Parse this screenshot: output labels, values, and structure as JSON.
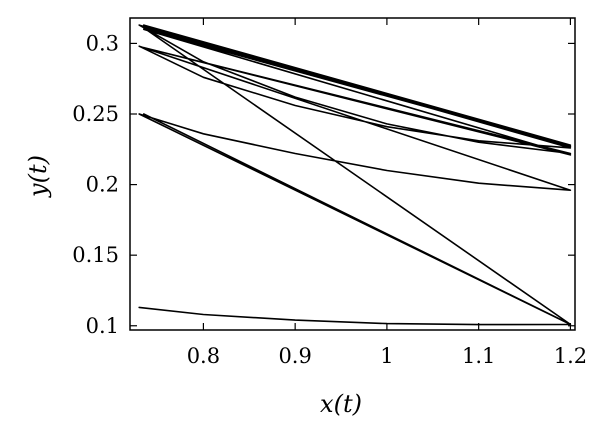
{
  "chart_data": {
    "type": "line",
    "title": "",
    "xlabel": "x(t)",
    "ylabel": "y(t)",
    "xlim": [
      0.72,
      1.205
    ],
    "ylim": [
      0.097,
      0.318
    ],
    "x_ticks": [
      {
        "value": 0.8,
        "label": "0.8"
      },
      {
        "value": 0.9,
        "label": "0.9"
      },
      {
        "value": 1.0,
        "label": "1"
      },
      {
        "value": 1.1,
        "label": "1.1"
      },
      {
        "value": 1.2,
        "label": "1.2"
      }
    ],
    "y_ticks": [
      {
        "value": 0.1,
        "label": "0.1"
      },
      {
        "value": 0.15,
        "label": "0.15"
      },
      {
        "value": 0.2,
        "label": "0.2"
      },
      {
        "value": 0.25,
        "label": "0.25"
      },
      {
        "value": 0.3,
        "label": "0.3"
      }
    ],
    "grid": false,
    "legend": "none",
    "series": [
      {
        "x": [
          0.73,
          0.8,
          0.9,
          1.0,
          1.1,
          1.2,
          0.73,
          0.8,
          0.9,
          1.0,
          1.1,
          1.2,
          0.73,
          0.8,
          0.9,
          1.0,
          1.1,
          1.2,
          0.73,
          0.8,
          0.9,
          1.0,
          1.1,
          1.2,
          0.735,
          1.2,
          0.735,
          1.2,
          0.735,
          1.2,
          0.735,
          1.2,
          0.735
        ],
        "y": [
          0.113,
          0.108,
          0.104,
          0.1015,
          0.1008,
          0.101,
          0.25,
          0.236,
          0.222,
          0.21,
          0.201,
          0.196,
          0.298,
          0.276,
          0.256,
          0.241,
          0.231,
          0.226,
          0.313,
          0.287,
          0.262,
          0.243,
          0.23,
          0.222,
          0.297,
          0.221,
          0.31,
          0.227,
          0.313,
          0.228,
          0.311,
          0.101,
          0.25
        ]
      }
    ]
  }
}
